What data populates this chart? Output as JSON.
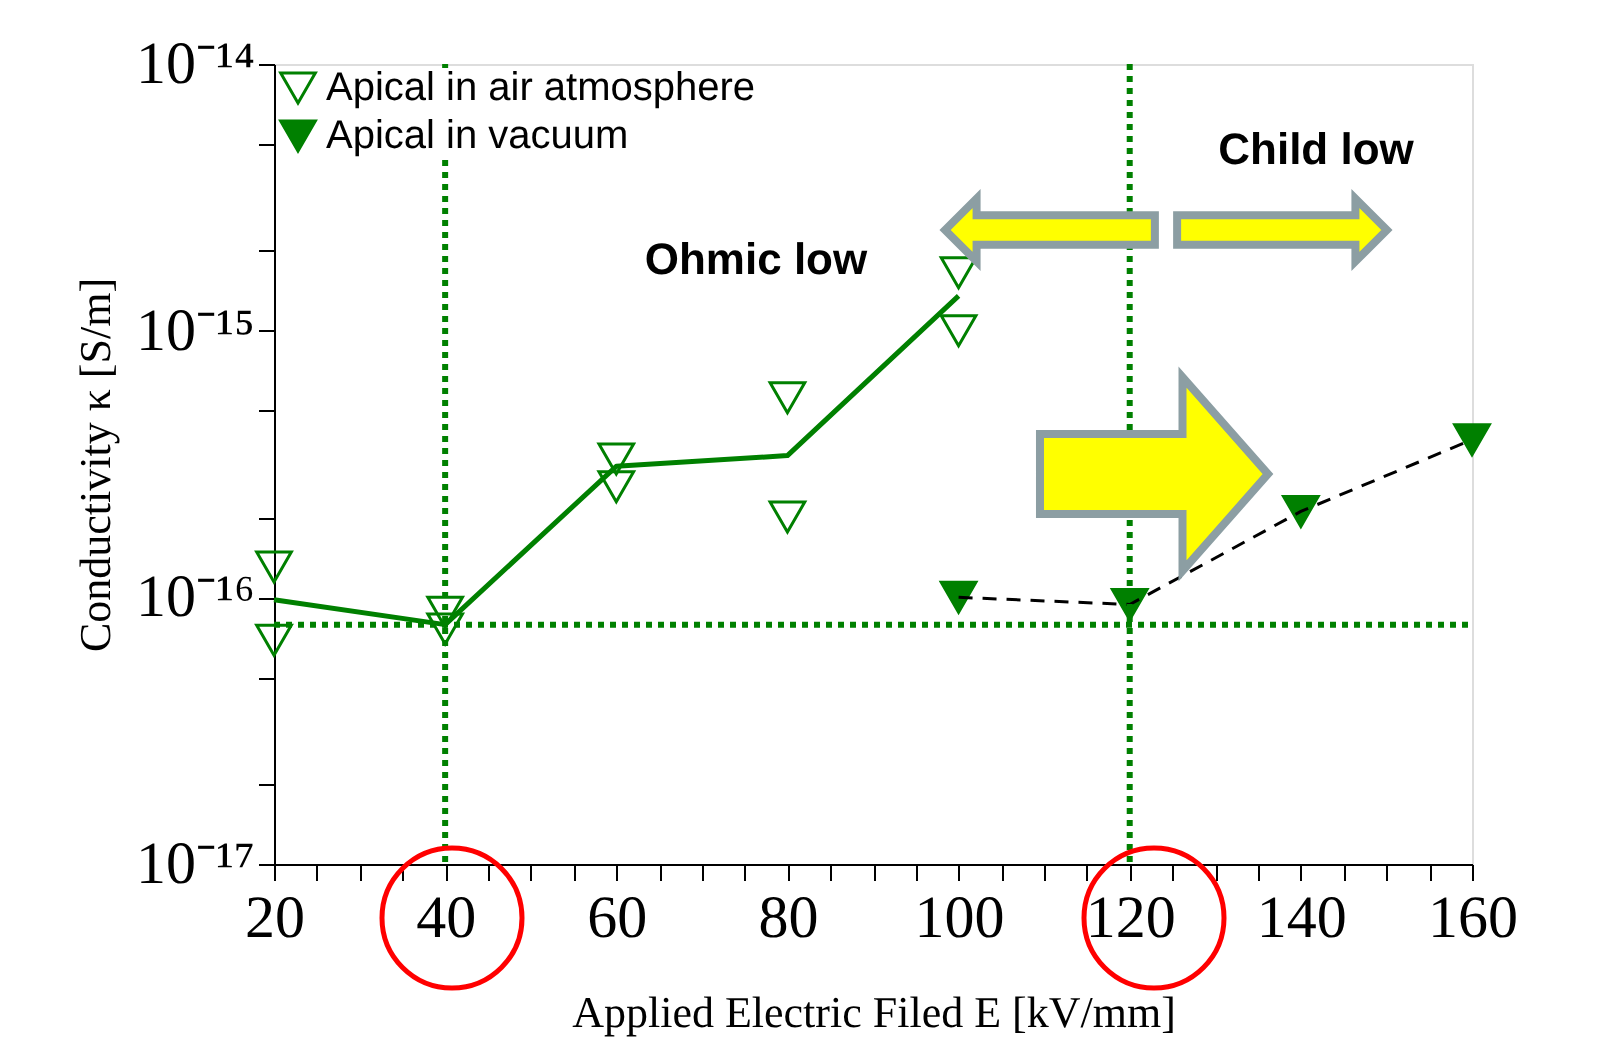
{
  "chart_data": {
    "type": "scatter",
    "xlabel": "Applied Electric Filed E [kV/mm]",
    "ylabel": "Conductivity κ [S/m]",
    "log": "y",
    "xlim": [
      20,
      160
    ],
    "xticks": [
      20,
      {
        "value": 25,
        "label": null
      },
      {
        "value": 30,
        "label": null
      },
      {
        "value": 35,
        "label": null
      },
      40,
      {
        "value": 45,
        "label": null
      },
      {
        "value": 50,
        "label": null
      },
      {
        "value": 55,
        "label": null
      },
      60,
      {
        "value": 65,
        "label": null
      },
      {
        "value": 70,
        "label": null
      },
      {
        "value": 75,
        "label": null
      },
      80,
      {
        "value": 85,
        "label": null
      },
      {
        "value": 90,
        "label": null
      },
      {
        "value": 95,
        "label": null
      },
      100,
      {
        "value": 105,
        "label": null
      },
      {
        "value": 110,
        "label": null
      },
      {
        "value": 115,
        "label": null
      },
      120,
      {
        "value": 125,
        "label": null
      },
      {
        "value": 130,
        "label": null
      },
      {
        "value": 135,
        "label": null
      },
      140,
      {
        "value": 145,
        "label": null
      },
      {
        "value": 150,
        "label": null
      },
      {
        "value": 155,
        "label": null
      },
      160
    ],
    "ylim": [
      1e-17,
      1e-14
    ],
    "yticks": [
      {
        "value": 1e-17,
        "label": "10⁻¹⁷"
      },
      {
        "value": 2e-17,
        "label": null
      },
      {
        "value": 5e-17,
        "label": null
      },
      {
        "value": 1e-16,
        "label": "10⁻¹⁶"
      },
      {
        "value": 2e-16,
        "label": null
      },
      {
        "value": 5e-16,
        "label": null
      },
      {
        "value": 1e-15,
        "label": "10⁻¹⁵"
      },
      {
        "value": 2e-15,
        "label": null
      },
      {
        "value": 5e-15,
        "label": null
      },
      {
        "value": 1e-14,
        "label": "10⁻¹⁴"
      }
    ],
    "grid": false,
    "legend": "top left",
    "series": [
      {
        "name": "Apical in air atmosphere",
        "marker": "triangle",
        "color": "#008000",
        "x": [
          20,
          20,
          40,
          40,
          60,
          60,
          80,
          80,
          100,
          100
        ],
        "values": [
          1.3e-16,
          6.9e-17,
          8.8e-17,
          7.6e-17,
          3.3e-16,
          2.6e-16,
          5.6e-16,
          2e-16,
          1.65e-15,
          1e-15
        ]
      },
      {
        "type": "line",
        "line_style": "solid",
        "color": "#008000",
        "x": [
          20,
          40,
          60,
          80,
          100
        ],
        "values": [
          9.8e-17,
          7.9e-17,
          3.1e-16,
          3.4e-16,
          1.35e-15
        ]
      },
      {
        "name": "Apical in vacuum",
        "marker": "triangle",
        "color": "#008000",
        "x": [
          100,
          120,
          140,
          160
        ],
        "values": [
          1e-16,
          9.4e-17,
          2.1e-16,
          3.9e-16
        ]
      },
      {
        "type": "line",
        "line_style": "dashed",
        "color": "#000000",
        "x": [
          100,
          120,
          140,
          160
        ],
        "values": [
          1e-16,
          9.4e-17,
          2.1e-16,
          3.9e-16
        ]
      }
    ],
    "ref_lines": [
      {
        "axis": "x",
        "value": 40,
        "color": "#008000",
        "line_style": "dotted"
      },
      {
        "axis": "x",
        "value": 120,
        "color": "#008000",
        "line_style": "dotted"
      },
      {
        "axis": "y",
        "value": 7.9e-17,
        "color": "#008000",
        "line_style": "dotted"
      }
    ],
    "annotations": [
      "Ohmic low",
      "Child low"
    ]
  }
}
